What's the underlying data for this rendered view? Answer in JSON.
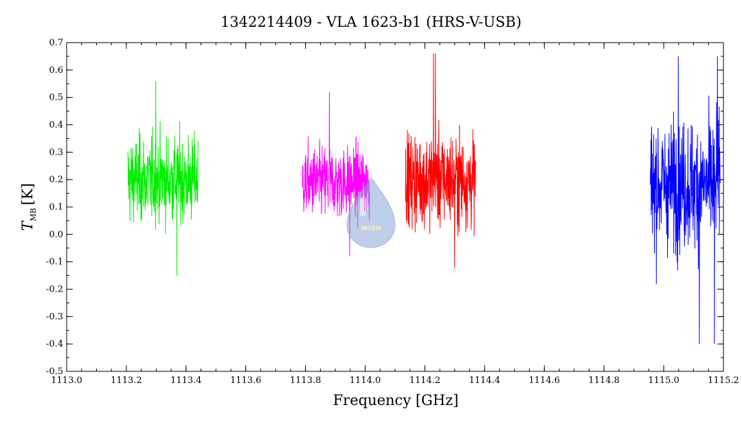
{
  "chart_data": {
    "type": "line",
    "title": "1342214409 - VLA 1623-b1 (HRS-V-USB)",
    "xlabel": "Frequency [GHz]",
    "ylabel_main": "T",
    "ylabel_sub": "MB",
    "ylabel_unit": "[K]",
    "xlim": [
      1113.0,
      1115.2
    ],
    "ylim": [
      -0.5,
      0.7
    ],
    "x_ticks": [
      1113.0,
      1113.2,
      1113.4,
      1113.6,
      1113.8,
      1114.0,
      1114.2,
      1114.4,
      1114.6,
      1114.8,
      1115.0,
      1115.2
    ],
    "x_tick_labels": [
      "1113.0",
      "1113.2",
      "1113.4",
      "1113.6",
      "1113.8",
      "1114.0",
      "1114.2",
      "1114.4",
      "1114.6",
      "1114.8",
      "1115.0",
      "1115.2"
    ],
    "y_ticks": [
      -0.5,
      -0.4,
      -0.3,
      -0.2,
      -0.1,
      0.0,
      0.1,
      0.2,
      0.3,
      0.4,
      0.5,
      0.6,
      0.7
    ],
    "y_tick_labels": [
      "-0.5",
      "-0.4",
      "-0.3",
      "-0.2",
      "-0.1",
      "0.0",
      "0.1",
      "0.2",
      "0.3",
      "0.4",
      "0.5",
      "0.6",
      "0.7"
    ],
    "grid": false,
    "watermark_text": "WISH",
    "series": [
      {
        "color": "#00ee00",
        "x_range": [
          1113.205,
          1113.44
        ],
        "mean": 0.2,
        "max": 0.56,
        "min": -0.15,
        "spikes": []
      },
      {
        "color": "#ff00ff",
        "x_range": [
          1113.79,
          1114.015
        ],
        "mean": 0.19,
        "max": 0.52,
        "min": -0.08,
        "spikes": []
      },
      {
        "color": "#ff0000",
        "x_range": [
          1114.135,
          1114.37
        ],
        "mean": 0.2,
        "max": 0.66,
        "min": -0.12,
        "spikes": [
          {
            "x": 1114.235,
            "y": 0.66
          }
        ]
      },
      {
        "color": "#0000ff",
        "x_range": [
          1114.955,
          1115.19
        ],
        "mean": 0.18,
        "max": 0.65,
        "min": -0.4,
        "spikes": [
          {
            "x": 1115.17,
            "y": -0.4
          },
          {
            "x": 1115.18,
            "y": 0.65
          }
        ]
      }
    ]
  }
}
